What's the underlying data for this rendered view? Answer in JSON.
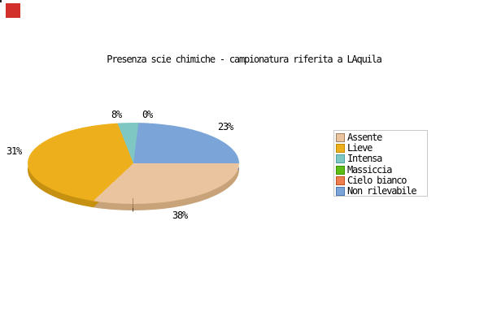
{
  "chart_data": {
    "type": "pie",
    "style": "3d",
    "title": "Presenza scie chimiche - campionatura riferita a LAquila",
    "labels": [
      "Assente",
      "Lieve",
      "Intensa",
      "Massiccia",
      "Cielo bianco",
      "Non rilevabile"
    ],
    "values_pct": [
      38,
      31,
      8,
      0,
      0,
      23
    ],
    "colors": [
      "#eac49e",
      "#edb01c",
      "#7ec7c3",
      "#5cbd16",
      "#ed7f50",
      "#7ba4d8"
    ],
    "side_colors": [
      "#c8a379",
      "#c69110",
      "#5fa9a5",
      "#3f8a10",
      "#c05a30",
      "#5e86b8"
    ],
    "swatch_border_colors": [
      "#a08060",
      "#c08a00",
      "#50a0a8",
      "#409000",
      "#c05020",
      "#5078b0"
    ],
    "start_angle": "east",
    "direction": "clockwise",
    "legend_position": "right",
    "background": "#ffffff",
    "grid": false
  },
  "slice_labels": [
    {
      "text": "8%",
      "slice": "Intensa"
    },
    {
      "text": "0%",
      "slice": "Massiccia / Cielo bianco"
    },
    {
      "text": "23%",
      "slice": "Non rilevabile"
    },
    {
      "text": "31%",
      "slice": "Lieve"
    },
    {
      "text": "38%",
      "slice": "Assente"
    }
  ],
  "decor": {
    "marker_color": "#d2312b",
    "legend_border_color": "#c9c9c9",
    "text_color": "#000000"
  }
}
